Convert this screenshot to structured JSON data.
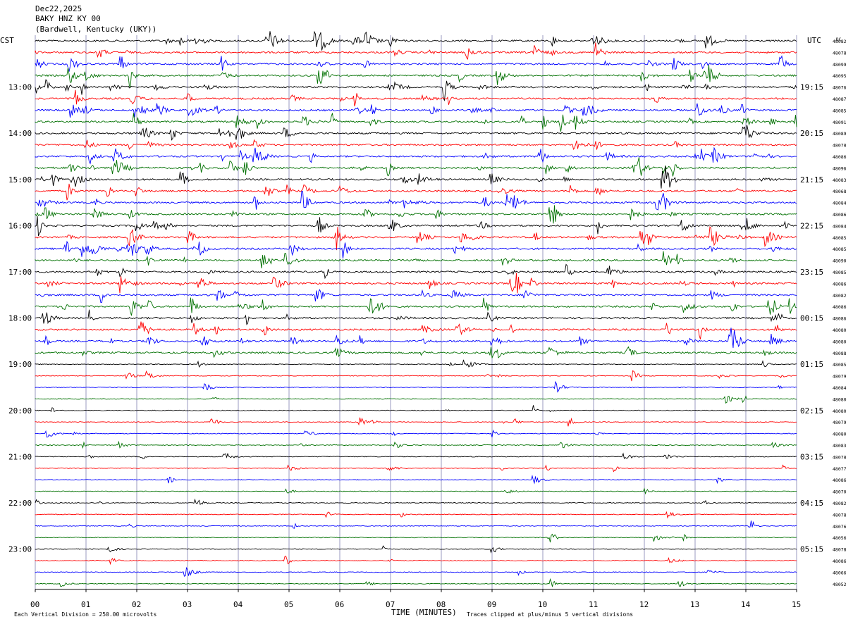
{
  "header": {
    "date": "Dec22,2025",
    "station": "BAKY HNZ KY 00",
    "location": "(Bardwell, Kentucky (UKY))"
  },
  "axes": {
    "left_zone_label": "CST",
    "right_zone_label": "UTC",
    "right_value_header": "DC",
    "xlabel": "TIME (MINUTES)",
    "x_ticks": [
      "00",
      "01",
      "02",
      "03",
      "04",
      "05",
      "06",
      "07",
      "08",
      "09",
      "10",
      "11",
      "12",
      "13",
      "14",
      "15"
    ]
  },
  "footer": {
    "scale_note": "Each Vertical Division =  250.00 microvolts",
    "clip_note": "Traces clipped at plus/minus 5 vertical divisions"
  },
  "colors": {
    "trace_cycle": [
      "#000000",
      "#ff0000",
      "#0000ff",
      "#007000"
    ],
    "grid": "#7f7fb0"
  },
  "chart_data": {
    "type": "line",
    "description_of_x": "minutes within each 15-minute trace line",
    "xlim": [
      0,
      15
    ],
    "traces_count": 48,
    "left_time_labels": [
      {
        "trace_index": 4,
        "label": "13:00"
      },
      {
        "trace_index": 8,
        "label": "14:00"
      },
      {
        "trace_index": 12,
        "label": "15:00"
      },
      {
        "trace_index": 16,
        "label": "16:00"
      },
      {
        "trace_index": 20,
        "label": "17:00"
      },
      {
        "trace_index": 24,
        "label": "18:00"
      },
      {
        "trace_index": 28,
        "label": "19:00"
      },
      {
        "trace_index": 32,
        "label": "20:00"
      },
      {
        "trace_index": 36,
        "label": "21:00"
      },
      {
        "trace_index": 40,
        "label": "22:00"
      },
      {
        "trace_index": 44,
        "label": "23:00"
      }
    ],
    "right_time_labels": [
      {
        "trace_index": 4,
        "label": "19:15"
      },
      {
        "trace_index": 8,
        "label": "20:15"
      },
      {
        "trace_index": 12,
        "label": "21:15"
      },
      {
        "trace_index": 16,
        "label": "22:15"
      },
      {
        "trace_index": 20,
        "label": "23:15"
      },
      {
        "trace_index": 24,
        "label": "00:15"
      },
      {
        "trace_index": 28,
        "label": "01:15"
      },
      {
        "trace_index": 32,
        "label": "02:15"
      },
      {
        "trace_index": 36,
        "label": "03:15"
      },
      {
        "trace_index": 40,
        "label": "04:15"
      },
      {
        "trace_index": 44,
        "label": "05:15"
      }
    ],
    "dc_offsets": [
      "48082",
      "48078",
      "48099",
      "48095",
      "48076",
      "48087",
      "48085",
      "48091",
      "48089",
      "48078",
      "48086",
      "48096",
      "48083",
      "48068",
      "48084",
      "48086",
      "48084",
      "48085",
      "48085",
      "48090",
      "48085",
      "48086",
      "48082",
      "48086",
      "48086",
      "48080",
      "48080",
      "48088",
      "48085",
      "48079",
      "48084",
      "48080",
      "48080",
      "48079",
      "48080",
      "48083",
      "48078",
      "48077",
      "48086",
      "48070",
      "48082",
      "48078",
      "48076",
      "48056",
      "48078",
      "48086",
      "48066",
      "48052"
    ],
    "noise_profile": "activity decreasing from top (daytime) to bottom (night); scattered transient events throughout"
  }
}
